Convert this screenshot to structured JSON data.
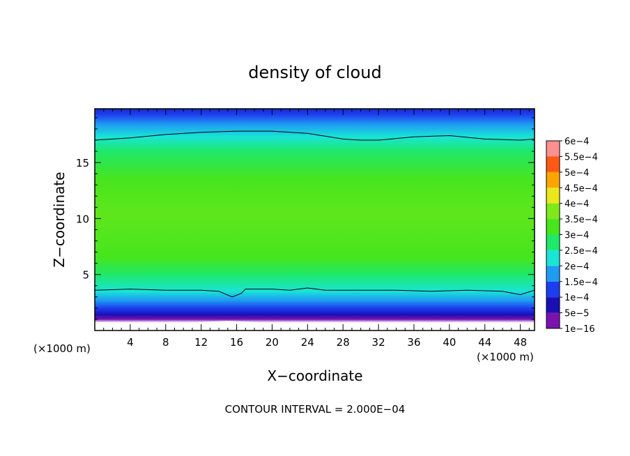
{
  "chart_data": {
    "type": "heatmap",
    "title": "density of cloud",
    "xlabel": "X−coordinate",
    "ylabel": "Z−coordinate",
    "x_unit_left": "(×1000 m)",
    "x_unit_right": "(×1000 m)",
    "xlim": [
      0,
      49.6
    ],
    "ylim": [
      0,
      19.8
    ],
    "x_ticks": [
      4,
      8,
      12,
      16,
      20,
      24,
      28,
      32,
      36,
      40,
      44,
      48
    ],
    "x_tick_labels": [
      "4",
      "8",
      "12",
      "16",
      "20",
      "24",
      "28",
      "32",
      "36",
      "40",
      "44",
      "48"
    ],
    "y_ticks": [
      5,
      10,
      15
    ],
    "y_tick_labels": [
      "5",
      "10",
      "15"
    ],
    "footer": "CONTOUR INTERVAL = 2.000E−04",
    "colorbar": {
      "levels": [
        {
          "label": "1e−16",
          "value": 1e-16,
          "color": "#7b12b0"
        },
        {
          "label": "5e−5",
          "value": 5e-05,
          "color": "#1a0fb4"
        },
        {
          "label": "1e−4",
          "value": 0.0001,
          "color": "#1d3ef0"
        },
        {
          "label": "1.5e−4",
          "value": 0.00015,
          "color": "#1f9cf2"
        },
        {
          "label": "2e−4",
          "value": 0.0002,
          "color": "#19e4d6"
        },
        {
          "label": "2.5e−4",
          "value": 0.00025,
          "color": "#1fe86a"
        },
        {
          "label": "3e−4",
          "value": 0.0003,
          "color": "#47e51d"
        },
        {
          "label": "3.5e−4",
          "value": 0.00035,
          "color": "#7fe81a"
        },
        {
          "label": "4e−4",
          "value": 0.0004,
          "color": "#e8e81b"
        },
        {
          "label": "4.5e−4",
          "value": 0.00045,
          "color": "#ffa500"
        },
        {
          "label": "5e−4",
          "value": 0.0005,
          "color": "#ff5a14"
        },
        {
          "label": "5.5e−4",
          "value": 0.00055,
          "color": "#ff2020"
        },
        {
          "label": "6e−4",
          "value": 0.0006,
          "color": "#ff9090"
        }
      ]
    },
    "vertical_profile": [
      {
        "z": 0.7,
        "color": "#ffffff"
      },
      {
        "z": 1.0,
        "color": "#7b12b0"
      },
      {
        "z": 1.4,
        "color": "#1a0fb4"
      },
      {
        "z": 2.0,
        "color": "#1d3ef0"
      },
      {
        "z": 2.7,
        "color": "#1f9cf2"
      },
      {
        "z": 3.5,
        "color": "#19e4d6"
      },
      {
        "z": 5.0,
        "color": "#1fe86a"
      },
      {
        "z": 6.5,
        "color": "#47e51d"
      },
      {
        "z": 10.5,
        "color": "#5fe61c"
      },
      {
        "z": 13.5,
        "color": "#47e51d"
      },
      {
        "z": 16.0,
        "color": "#1fe86a"
      },
      {
        "z": 17.3,
        "color": "#19e4d6"
      },
      {
        "z": 18.4,
        "color": "#1f9cf2"
      },
      {
        "z": 19.3,
        "color": "#1d3ef0"
      },
      {
        "z": 19.8,
        "color": "#1a2ac8"
      }
    ],
    "contours": [
      {
        "level": 0.0002,
        "points": [
          [
            0,
            17.0
          ],
          [
            4,
            17.2
          ],
          [
            8,
            17.5
          ],
          [
            12,
            17.7
          ],
          [
            16,
            17.8
          ],
          [
            20,
            17.8
          ],
          [
            24,
            17.6
          ],
          [
            28,
            17.1
          ],
          [
            30,
            17.0
          ],
          [
            32,
            17.0
          ],
          [
            36,
            17.3
          ],
          [
            40,
            17.4
          ],
          [
            44,
            17.1
          ],
          [
            48,
            17.0
          ],
          [
            49.6,
            17.1
          ]
        ]
      },
      {
        "level": 0.0002,
        "points": [
          [
            0,
            3.6
          ],
          [
            4,
            3.7
          ],
          [
            8,
            3.6
          ],
          [
            12,
            3.6
          ],
          [
            14,
            3.5
          ],
          [
            15.5,
            3.0
          ],
          [
            16.5,
            3.3
          ],
          [
            17,
            3.7
          ],
          [
            20,
            3.7
          ],
          [
            22,
            3.6
          ],
          [
            24,
            3.8
          ],
          [
            26,
            3.6
          ],
          [
            30,
            3.6
          ],
          [
            34,
            3.6
          ],
          [
            38,
            3.5
          ],
          [
            42,
            3.6
          ],
          [
            46,
            3.5
          ],
          [
            48,
            3.2
          ],
          [
            49.6,
            3.6
          ]
        ]
      }
    ]
  }
}
